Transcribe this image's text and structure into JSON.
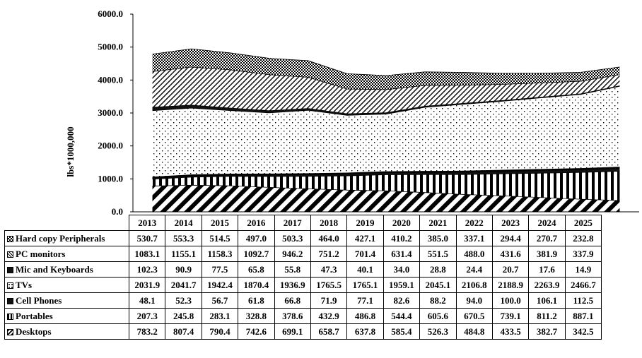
{
  "chart_data": {
    "type": "area",
    "stacked": true,
    "ylabel": "lbs*1000,000",
    "ylim": [
      0,
      6000
    ],
    "yticks": [
      "0.0",
      "1000.0",
      "2000.0",
      "3000.0",
      "4000.0",
      "5000.0",
      "6000.0"
    ],
    "categories": [
      "2013",
      "2014",
      "2015",
      "2016",
      "2017",
      "2018",
      "2019",
      "2020",
      "2021",
      "2022",
      "2023",
      "2024",
      "2025"
    ],
    "series": [
      {
        "name": "Desktops",
        "pattern": "diag-thick",
        "values": [
          783.2,
          807.4,
          790.4,
          742.6,
          699.1,
          658.7,
          637.8,
          585.4,
          526.3,
          484.8,
          433.5,
          382.7,
          342.5
        ],
        "display": [
          "783.2",
          "807.4",
          "790.4",
          "742.6",
          "699.1",
          "658.7",
          "637.8",
          "585.4",
          "526.3",
          "484.8",
          "433.5",
          "382.7",
          "342.5"
        ]
      },
      {
        "name": "Portables",
        "pattern": "vertical-bars",
        "values": [
          207.3,
          245.8,
          283.1,
          328.8,
          378.6,
          432.9,
          486.8,
          544.4,
          605.6,
          670.5,
          739.1,
          811.2,
          887.1
        ],
        "display": [
          "207.3",
          "245.8",
          "283.1",
          "328.8",
          "378.6",
          "432.9",
          "486.8",
          "544.4",
          "605.6",
          "670.5",
          "739.1",
          "811.2",
          "887.1"
        ]
      },
      {
        "name": "Cell Phones",
        "pattern": "solid-dark",
        "values": [
          48.1,
          52.3,
          56.7,
          61.8,
          66.8,
          71.9,
          77.1,
          82.6,
          88.2,
          94.0,
          100.0,
          106.1,
          112.5
        ],
        "display": [
          "48.1",
          "52.3",
          "56.7",
          "61.8",
          "66.8",
          "71.9",
          "77.1",
          "82.6",
          "88.2",
          "94.0",
          "100.0",
          "106.1",
          "112.5"
        ]
      },
      {
        "name": "TVs",
        "pattern": "sparse-dots",
        "values": [
          2031.9,
          2041.7,
          1942.4,
          1870.4,
          1936.9,
          1765.5,
          1765.1,
          1959.1,
          2045.1,
          2106.8,
          2188.9,
          2263.9,
          2466.7
        ],
        "display": [
          "2031.9",
          "2041.7",
          "1942.4",
          "1870.4",
          "1936.9",
          "1765.5",
          "1765.1",
          "1959.1",
          "2045.1",
          "2106.8",
          "2188.9",
          "2263.9",
          "2466.7"
        ]
      },
      {
        "name": "Mic and Keyboards",
        "pattern": "solid-dark",
        "values": [
          102.3,
          90.9,
          77.5,
          65.8,
          55.8,
          47.3,
          40.1,
          34.0,
          28.8,
          24.4,
          20.7,
          17.6,
          14.9
        ],
        "display": [
          "102.3",
          "90.9",
          "77.5",
          "65.8",
          "55.8",
          "47.3",
          "40.1",
          "34.0",
          "28.8",
          "24.4",
          "20.7",
          "17.6",
          "14.9"
        ]
      },
      {
        "name": "PC monitors",
        "pattern": "diag-thin",
        "values": [
          1083.1,
          1155.1,
          1158.3,
          1092.7,
          946.2,
          751.2,
          701.4,
          631.4,
          551.5,
          488.0,
          431.6,
          381.9,
          337.9
        ],
        "display": [
          "1083.1",
          "1155.1",
          "1158.3",
          "1092.7",
          "946.2",
          "751.2",
          "701.4",
          "631.4",
          "551.5",
          "488.0",
          "431.6",
          "381.9",
          "337.9"
        ]
      },
      {
        "name": "Hard copy Peripherals",
        "pattern": "checker",
        "values": [
          530.7,
          553.3,
          514.5,
          497.0,
          503.3,
          464.0,
          427.1,
          410.2,
          385.0,
          337.1,
          294.4,
          270.7,
          232.8
        ],
        "display": [
          "530.7",
          "553.3",
          "514.5",
          "497.0",
          "503.3",
          "464.0",
          "427.1",
          "410.2",
          "385.0",
          "337.1",
          "294.4",
          "270.7",
          "232.8"
        ]
      }
    ],
    "table_row_order": [
      "Hard copy Peripherals",
      "PC monitors",
      "Mic and Keyboards",
      "TVs",
      "Cell Phones",
      "Portables",
      "Desktops"
    ],
    "grid": false,
    "legend": "data-table"
  }
}
